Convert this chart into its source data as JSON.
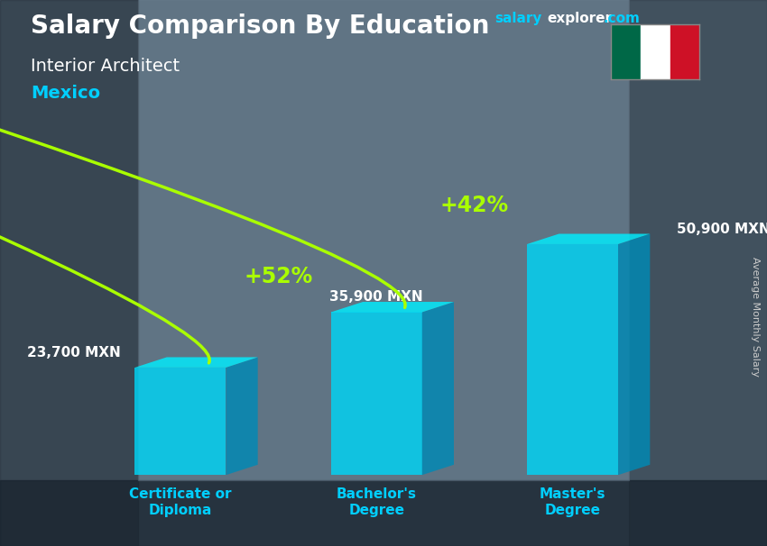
{
  "title": "Salary Comparison By Education",
  "subtitle": "Interior Architect",
  "country": "Mexico",
  "categories": [
    "Certificate or\nDiploma",
    "Bachelor's\nDegree",
    "Master's\nDegree"
  ],
  "values": [
    23700,
    35900,
    50900
  ],
  "value_labels": [
    "23,700 MXN",
    "35,900 MXN",
    "50,900 MXN"
  ],
  "pct_labels": [
    "+52%",
    "+42%"
  ],
  "bar_front_color": "#00d4f5",
  "bar_side_color": "#008ab5",
  "bar_top_color": "#00eeff",
  "bar_alpha": 0.82,
  "bg_color": "#4a6070",
  "title_color": "#ffffff",
  "subtitle_color": "#ffffff",
  "country_color": "#00cfff",
  "value_color": "#ffffff",
  "pct_color": "#aaff00",
  "arrow_color": "#aaff00",
  "xtick_color": "#00cfff",
  "ylabel": "Average Monthly Salary",
  "ylim": [
    0,
    65000
  ],
  "bar_width": 0.13,
  "bar_positions": [
    0.22,
    0.5,
    0.78
  ],
  "fig_width": 8.5,
  "fig_height": 6.06,
  "flag_green": "#006847",
  "flag_white": "#ffffff",
  "flag_red": "#ce1126"
}
